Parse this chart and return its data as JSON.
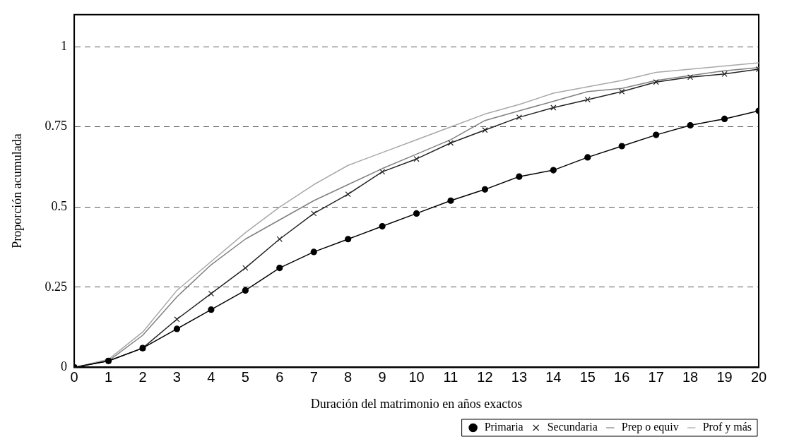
{
  "chart_data": {
    "type": "line",
    "xlabel": "Duración del matrimonio en años exactos",
    "ylabel": "Proporción acumulada",
    "x": [
      0,
      1,
      2,
      3,
      4,
      5,
      6,
      7,
      8,
      9,
      10,
      11,
      12,
      13,
      14,
      15,
      16,
      17,
      18,
      19,
      20
    ],
    "xlim": [
      0,
      20
    ],
    "xticks": [
      0,
      1,
      2,
      3,
      4,
      5,
      6,
      7,
      8,
      9,
      10,
      11,
      12,
      13,
      14,
      15,
      16,
      17,
      18,
      19,
      20
    ],
    "ylim": [
      0,
      1.1
    ],
    "yticks": [
      0,
      0.25,
      0.5,
      0.75,
      1
    ],
    "grid": "y",
    "legend": "bottom right",
    "series": [
      {
        "name": "Primaria",
        "color": "#000000",
        "marker": "circle",
        "values": [
          0,
          0.02,
          0.06,
          0.12,
          0.18,
          0.24,
          0.31,
          0.36,
          0.4,
          0.44,
          0.48,
          0.52,
          0.555,
          0.595,
          0.615,
          0.655,
          0.69,
          0.725,
          0.755,
          0.775,
          0.8
        ]
      },
      {
        "name": "Secundaria",
        "color": "#222222",
        "marker": "cross",
        "values": [
          0,
          0.02,
          0.06,
          0.15,
          0.23,
          0.31,
          0.4,
          0.48,
          0.54,
          0.61,
          0.65,
          0.7,
          0.74,
          0.78,
          0.81,
          0.835,
          0.86,
          0.89,
          0.905,
          0.915,
          0.93
        ]
      },
      {
        "name": "Prep o equiv",
        "color": "#808080",
        "marker": "none",
        "values": [
          0,
          0.02,
          0.1,
          0.22,
          0.32,
          0.4,
          0.46,
          0.52,
          0.57,
          0.62,
          0.665,
          0.71,
          0.77,
          0.8,
          0.83,
          0.86,
          0.87,
          0.895,
          0.91,
          0.925,
          0.935
        ]
      },
      {
        "name": "Prof y más",
        "color": "#a8a8a8",
        "marker": "none",
        "values": [
          0,
          0.025,
          0.11,
          0.24,
          0.33,
          0.42,
          0.5,
          0.57,
          0.63,
          0.67,
          0.71,
          0.75,
          0.79,
          0.82,
          0.855,
          0.875,
          0.895,
          0.92,
          0.93,
          0.94,
          0.95
        ]
      }
    ]
  }
}
